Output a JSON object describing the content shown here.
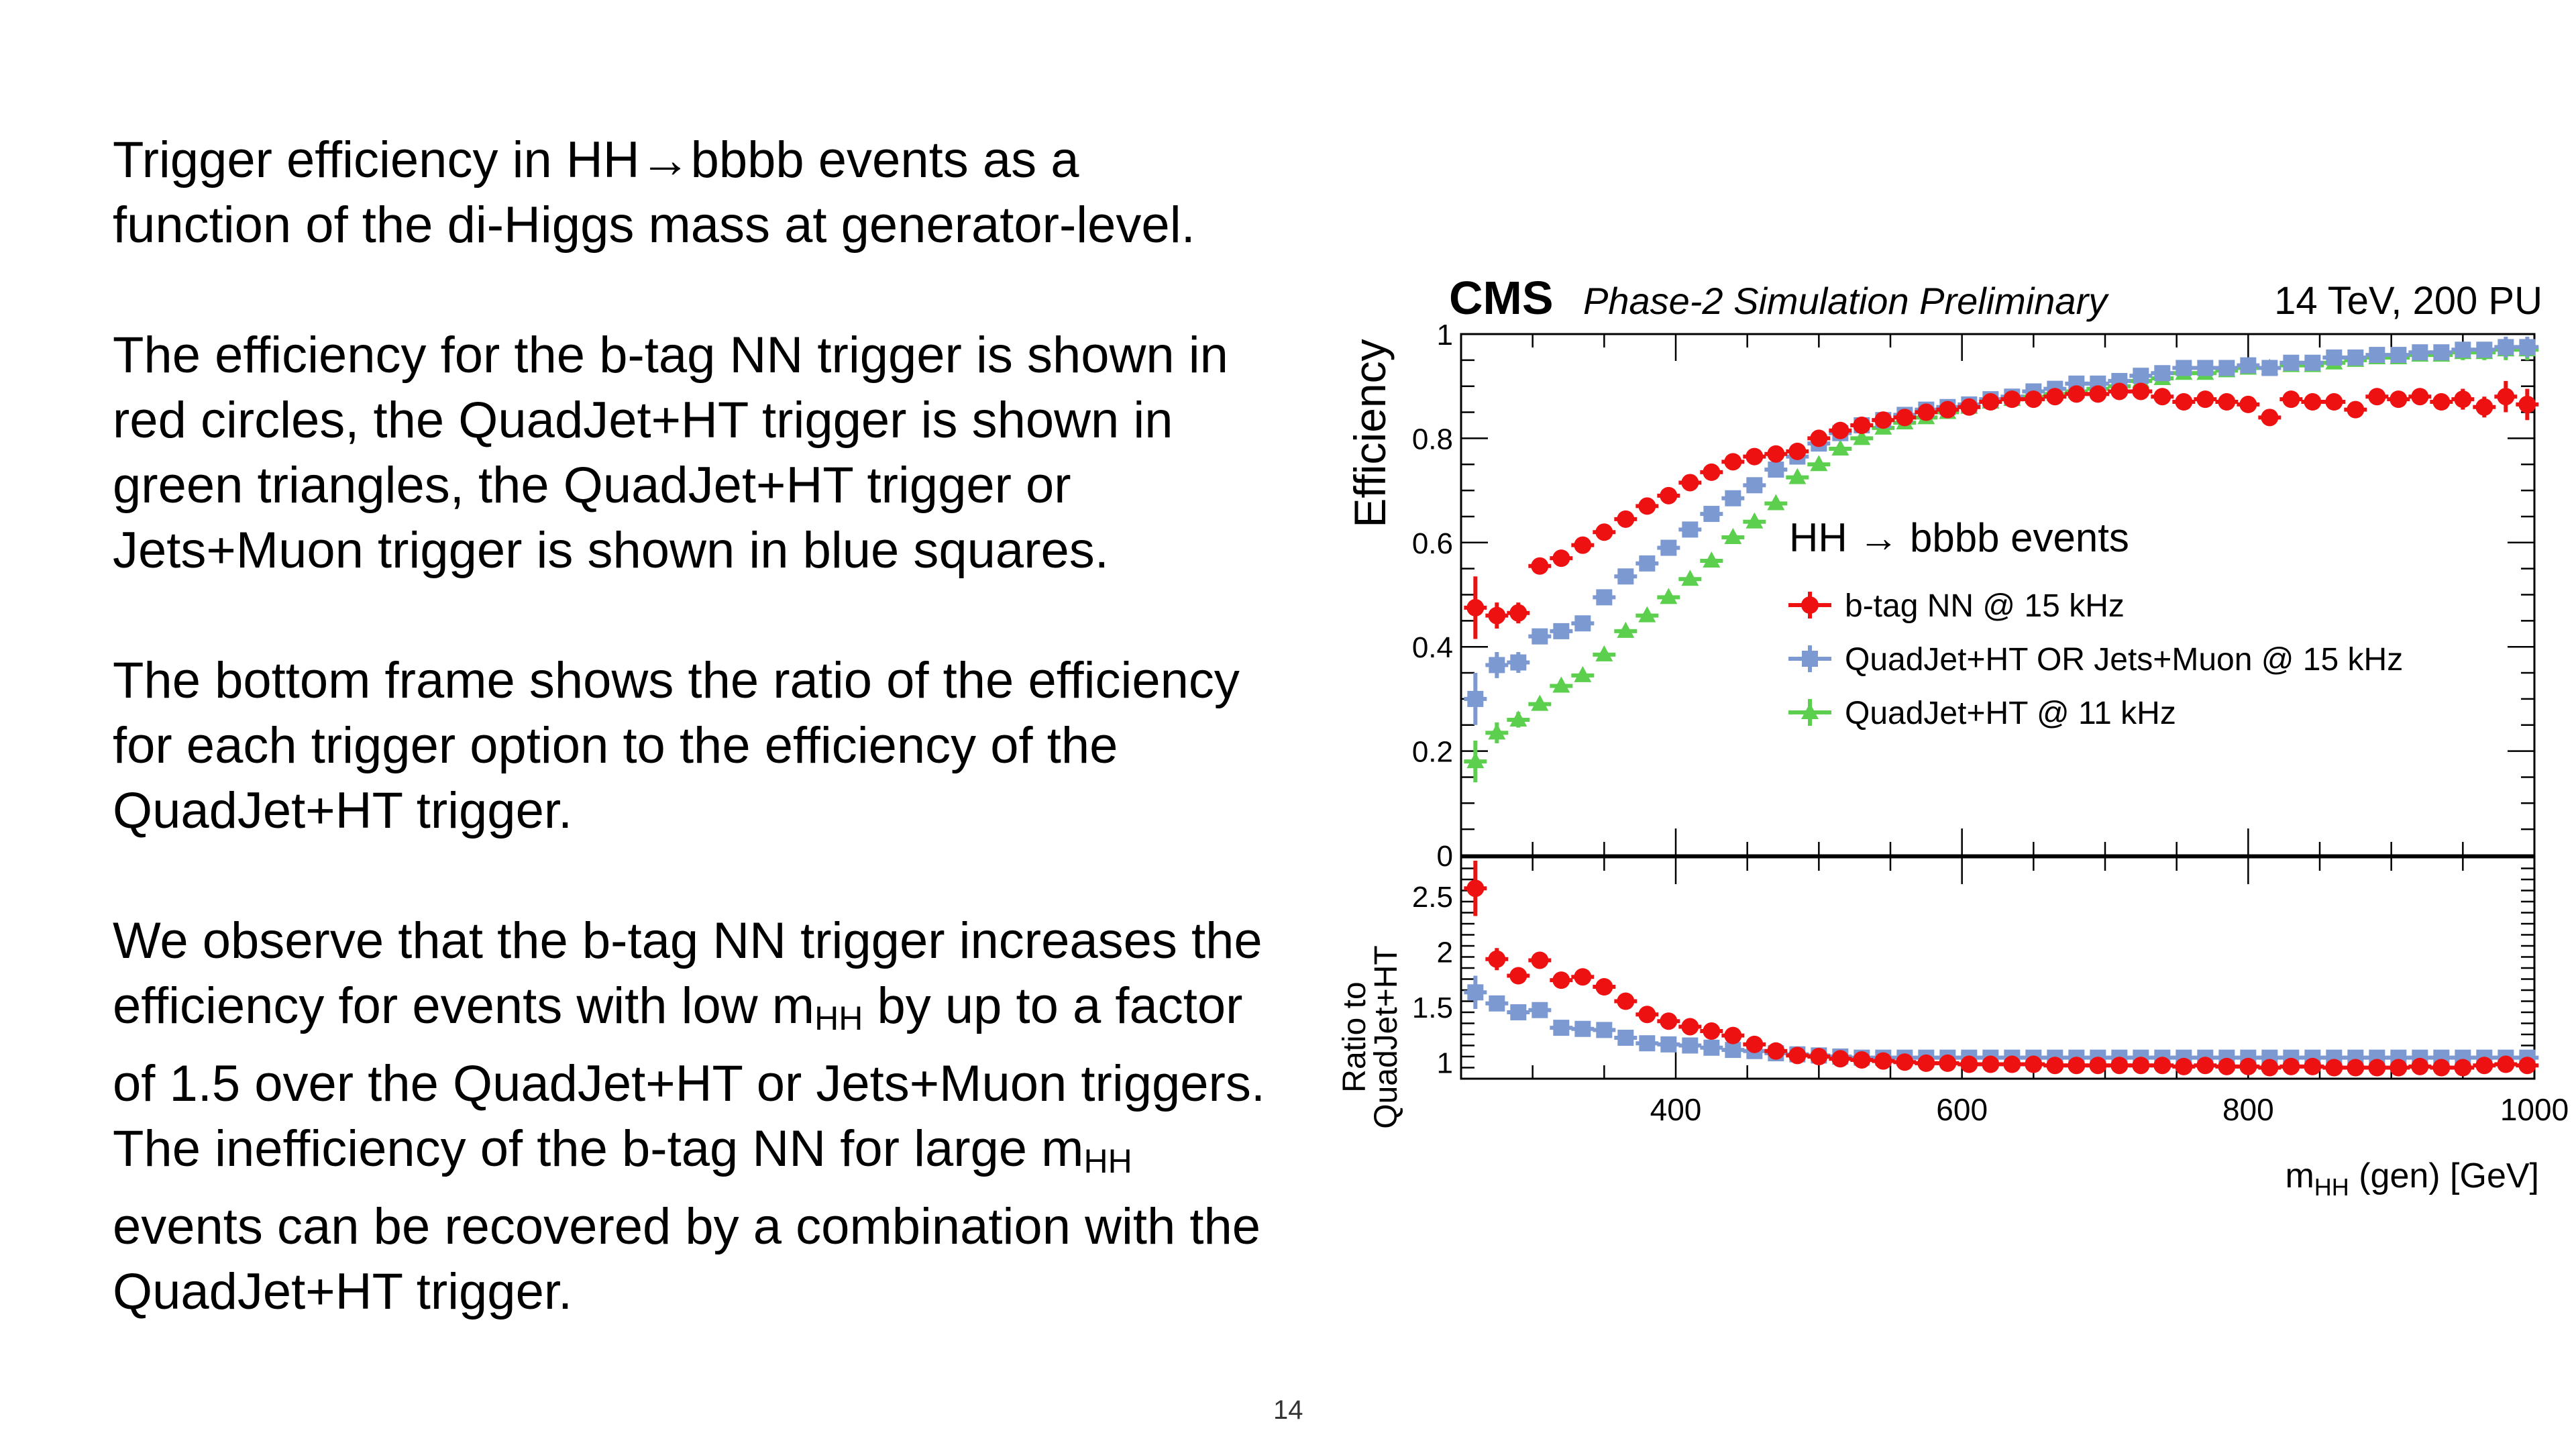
{
  "text": {
    "p1": "Trigger efficiency in HH→bbbb events as a function of the di-Higgs mass at generator-level.",
    "p2": "The efficiency for the b-tag NN trigger is shown in red circles, the QuadJet+HT trigger is shown in green triangles, the QuadJet+HT trigger or Jets+Muon trigger is shown in blue squares.",
    "p3": "The bottom frame shows the ratio of the efficiency for each trigger option to the efficiency of the QuadJet+HT trigger.",
    "p4a": "We observe that the b-tag NN trigger increases the efficiency for events with low m",
    "p4sub1": "HH",
    "p4b": " by up to a factor of 1.5 over the QuadJet+HT or Jets+Muon triggers. The inefficiency of the b-tag NN for large m",
    "p4sub2": "HH",
    "p4c": " events can be recovered by a combination with the QuadJet+HT trigger.",
    "page_number": "14"
  },
  "chart_data": {
    "type": "scatter",
    "header": {
      "experiment": "CMS",
      "label": "Phase-2 Simulation Preliminary",
      "energy": "14 TeV, 200 PU"
    },
    "legend_title": "HH → bbbb events",
    "legend_placement": "center-right",
    "colors": {
      "btag": "#ee1111",
      "or": "#7d99d1",
      "quad": "#5ccf4e"
    },
    "xlabel_main": "m",
    "xlabel_sub": "HH",
    "xlabel_rest": " (gen) [GeV]",
    "xlim": [
      250,
      1000
    ],
    "x_tick_labels": [
      "400",
      "600",
      "800",
      "1000"
    ],
    "top": {
      "ylabel": "Efficiency",
      "ylim": [
        0,
        1
      ],
      "y_tick_labels": [
        "0",
        "0.2",
        "0.4",
        "0.6",
        "0.8",
        "1"
      ]
    },
    "bottom": {
      "ylabel_line1": "Ratio to",
      "ylabel_line2": "QuadJet+HT",
      "ylim": [
        0.85,
        2.85
      ],
      "y_tick_labels": [
        "1",
        "1.5",
        "2",
        "2.5"
      ]
    },
    "x": [
      260,
      275,
      290,
      305,
      320,
      335,
      350,
      365,
      380,
      395,
      410,
      425,
      440,
      455,
      470,
      485,
      500,
      515,
      530,
      545,
      560,
      575,
      590,
      605,
      620,
      635,
      650,
      665,
      680,
      695,
      710,
      725,
      740,
      755,
      770,
      785,
      800,
      815,
      830,
      845,
      860,
      875,
      890,
      905,
      920,
      935,
      950,
      965,
      980,
      995
    ],
    "series": [
      {
        "key": "btag",
        "name": "b-tag NN @ 15 kHz",
        "marker": "circle",
        "efficiency": [
          0.475,
          0.46,
          0.465,
          0.555,
          0.57,
          0.595,
          0.62,
          0.645,
          0.67,
          0.69,
          0.715,
          0.735,
          0.755,
          0.765,
          0.77,
          0.775,
          0.8,
          0.815,
          0.825,
          0.835,
          0.84,
          0.85,
          0.855,
          0.86,
          0.87,
          0.875,
          0.875,
          0.88,
          0.885,
          0.885,
          0.89,
          0.89,
          0.88,
          0.87,
          0.875,
          0.87,
          0.865,
          0.84,
          0.875,
          0.87,
          0.87,
          0.855,
          0.88,
          0.875,
          0.88,
          0.87,
          0.875,
          0.86,
          0.88,
          0.865
        ],
        "efficiency_err": [
          0.06,
          0.025,
          0.02,
          0.015,
          0.012,
          0.012,
          0.01,
          0.01,
          0.01,
          0.01,
          0.01,
          0.01,
          0.01,
          0.01,
          0.01,
          0.01,
          0.01,
          0.01,
          0.01,
          0.01,
          0.01,
          0.01,
          0.01,
          0.01,
          0.01,
          0.01,
          0.01,
          0.01,
          0.01,
          0.01,
          0.01,
          0.01,
          0.01,
          0.01,
          0.01,
          0.01,
          0.01,
          0.012,
          0.012,
          0.012,
          0.012,
          0.012,
          0.015,
          0.015,
          0.015,
          0.015,
          0.02,
          0.02,
          0.03,
          0.03
        ],
        "ratio": [
          2.57,
          1.93,
          1.78,
          1.92,
          1.74,
          1.77,
          1.68,
          1.55,
          1.43,
          1.37,
          1.32,
          1.28,
          1.24,
          1.16,
          1.1,
          1.06,
          1.05,
          1.03,
          1.02,
          1.01,
          1.0,
          0.99,
          0.99,
          0.98,
          0.98,
          0.98,
          0.98,
          0.97,
          0.97,
          0.97,
          0.97,
          0.97,
          0.97,
          0.96,
          0.97,
          0.96,
          0.96,
          0.95,
          0.96,
          0.96,
          0.95,
          0.95,
          0.95,
          0.95,
          0.96,
          0.95,
          0.95,
          0.97,
          0.98,
          0.97
        ],
        "ratio_err": [
          0.25,
          0.1,
          0.06,
          0.05,
          0.04,
          0.04,
          0.03,
          0.03,
          0.03,
          0.03,
          0.02,
          0.02,
          0.02,
          0.02,
          0.02,
          0.02,
          0.02,
          0.02,
          0.02,
          0.02,
          0.02,
          0.02,
          0.02,
          0.02,
          0.02,
          0.02,
          0.02,
          0.02,
          0.02,
          0.02,
          0.02,
          0.02,
          0.02,
          0.02,
          0.02,
          0.02,
          0.02,
          0.02,
          0.02,
          0.02,
          0.02,
          0.02,
          0.02,
          0.02,
          0.02,
          0.02,
          0.02,
          0.03,
          0.03,
          0.05
        ]
      },
      {
        "key": "or",
        "name": "QuadJet+HT OR Jets+Muon @ 15 kHz",
        "marker": "square",
        "efficiency": [
          0.3,
          0.365,
          0.37,
          0.42,
          0.43,
          0.445,
          0.495,
          0.535,
          0.56,
          0.59,
          0.625,
          0.655,
          0.685,
          0.71,
          0.74,
          0.765,
          0.79,
          0.81,
          0.825,
          0.835,
          0.845,
          0.855,
          0.86,
          0.865,
          0.875,
          0.88,
          0.89,
          0.895,
          0.905,
          0.905,
          0.91,
          0.92,
          0.925,
          0.935,
          0.935,
          0.935,
          0.94,
          0.935,
          0.945,
          0.945,
          0.955,
          0.955,
          0.96,
          0.96,
          0.965,
          0.965,
          0.97,
          0.97,
          0.975,
          0.975
        ],
        "efficiency_err": [
          0.05,
          0.025,
          0.02,
          0.015,
          0.012,
          0.012,
          0.01,
          0.01,
          0.01,
          0.01,
          0.01,
          0.01,
          0.01,
          0.01,
          0.01,
          0.01,
          0.01,
          0.01,
          0.01,
          0.01,
          0.01,
          0.01,
          0.01,
          0.01,
          0.01,
          0.01,
          0.01,
          0.01,
          0.01,
          0.01,
          0.01,
          0.01,
          0.01,
          0.01,
          0.01,
          0.01,
          0.01,
          0.01,
          0.01,
          0.01,
          0.01,
          0.01,
          0.01,
          0.01,
          0.01,
          0.01,
          0.015,
          0.015,
          0.02,
          0.02
        ],
        "ratio": [
          1.63,
          1.53,
          1.45,
          1.47,
          1.31,
          1.3,
          1.29,
          1.22,
          1.17,
          1.16,
          1.15,
          1.13,
          1.11,
          1.1,
          1.08,
          1.07,
          1.06,
          1.05,
          1.04,
          1.04,
          1.04,
          1.04,
          1.04,
          1.04,
          1.04,
          1.04,
          1.04,
          1.04,
          1.04,
          1.04,
          1.04,
          1.04,
          1.04,
          1.04,
          1.04,
          1.04,
          1.04,
          1.04,
          1.04,
          1.04,
          1.04,
          1.04,
          1.04,
          1.04,
          1.04,
          1.04,
          1.04,
          1.04,
          1.04,
          1.04
        ],
        "ratio_err": [
          0.15,
          0.07,
          0.05,
          0.04,
          0.03,
          0.03,
          0.03,
          0.02,
          0.02,
          0.02,
          0.02,
          0.02,
          0.02,
          0.02,
          0.02,
          0.02,
          0.02,
          0.02,
          0.02,
          0.02,
          0.02,
          0.02,
          0.02,
          0.02,
          0.02,
          0.02,
          0.02,
          0.02,
          0.02,
          0.02,
          0.02,
          0.02,
          0.02,
          0.02,
          0.02,
          0.02,
          0.02,
          0.02,
          0.02,
          0.02,
          0.02,
          0.02,
          0.02,
          0.02,
          0.02,
          0.02,
          0.02,
          0.03,
          0.03,
          0.05
        ]
      },
      {
        "key": "quad",
        "name": "QuadJet+HT @ 11 kHz",
        "marker": "triangle",
        "efficiency": [
          0.18,
          0.235,
          0.26,
          0.29,
          0.325,
          0.345,
          0.385,
          0.43,
          0.46,
          0.495,
          0.53,
          0.565,
          0.61,
          0.64,
          0.675,
          0.725,
          0.75,
          0.78,
          0.8,
          0.82,
          0.83,
          0.84,
          0.85,
          0.86,
          0.87,
          0.875,
          0.88,
          0.885,
          0.89,
          0.895,
          0.9,
          0.91,
          0.915,
          0.925,
          0.925,
          0.93,
          0.935,
          0.935,
          0.94,
          0.94,
          0.945,
          0.95,
          0.955,
          0.955,
          0.96,
          0.96,
          0.965,
          0.965,
          0.97,
          0.97
        ],
        "efficiency_err": [
          0.04,
          0.02,
          0.015,
          0.012,
          0.012,
          0.01,
          0.01,
          0.01,
          0.01,
          0.01,
          0.01,
          0.01,
          0.01,
          0.01,
          0.01,
          0.01,
          0.01,
          0.01,
          0.01,
          0.01,
          0.01,
          0.01,
          0.01,
          0.01,
          0.01,
          0.01,
          0.01,
          0.01,
          0.01,
          0.01,
          0.01,
          0.01,
          0.01,
          0.01,
          0.01,
          0.01,
          0.01,
          0.01,
          0.01,
          0.01,
          0.01,
          0.01,
          0.01,
          0.01,
          0.01,
          0.01,
          0.015,
          0.015,
          0.02,
          0.02
        ]
      }
    ]
  }
}
